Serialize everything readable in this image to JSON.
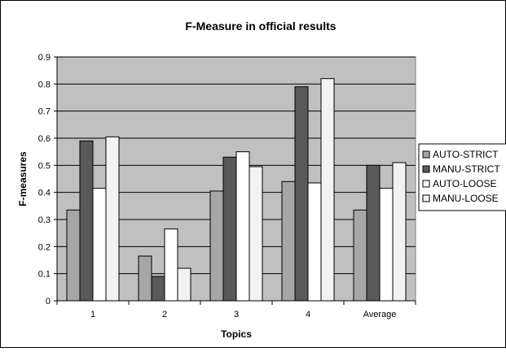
{
  "chart_data": {
    "type": "bar",
    "title": "F-Measure in official results",
    "xlabel": "Topics",
    "ylabel": "F-measures",
    "categories": [
      "1",
      "2",
      "3",
      "4",
      "Average"
    ],
    "ylim": [
      0,
      0.9
    ],
    "yticks": [
      "0",
      "0.1",
      "0.2",
      "0.3",
      "0.4",
      "0.5",
      "0.6",
      "0.7",
      "0.8",
      "0.9"
    ],
    "grid": true,
    "legend_position": "right",
    "series": [
      {
        "name": "AUTO-STRICT",
        "color": "#a6a6a6",
        "values": [
          0.335,
          0.165,
          0.405,
          0.44,
          0.335
        ]
      },
      {
        "name": "MANU-STRICT",
        "color": "#595959",
        "values": [
          0.59,
          0.09,
          0.53,
          0.79,
          0.5
        ]
      },
      {
        "name": "AUTO-LOOSE",
        "color": "#ffffff",
        "values": [
          0.415,
          0.265,
          0.55,
          0.435,
          0.415
        ]
      },
      {
        "name": "MANU-LOOSE",
        "color": "#f2f2f2",
        "values": [
          0.605,
          0.12,
          0.495,
          0.82,
          0.51
        ]
      }
    ],
    "plot_background": "#c0c0c0"
  }
}
